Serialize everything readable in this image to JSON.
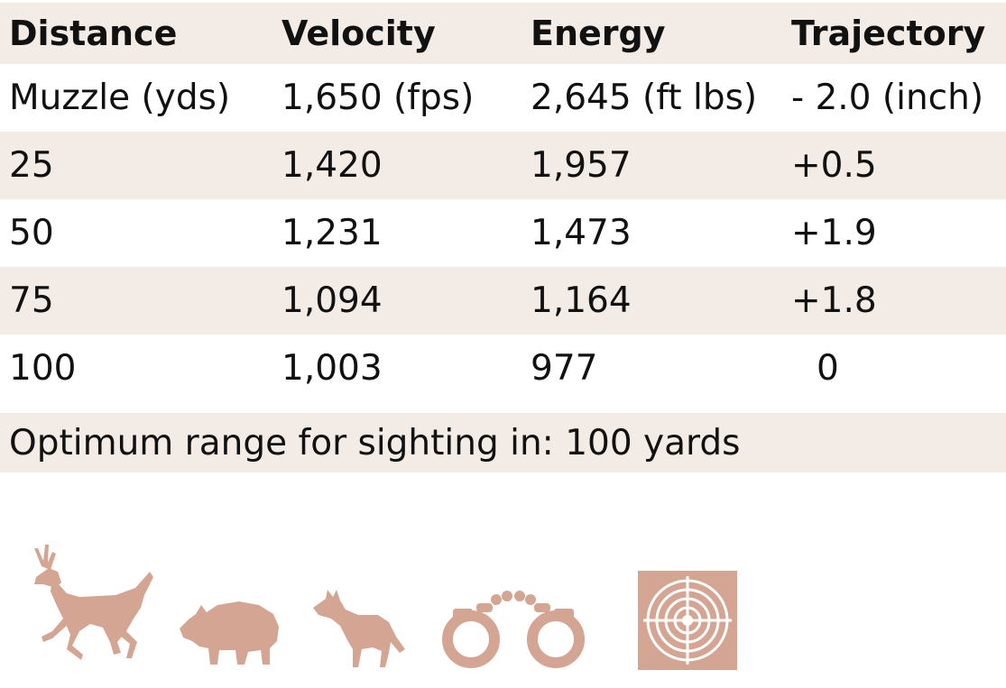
{
  "table": {
    "headers": [
      "Distance",
      "Velocity",
      "Energy",
      "Trajectory"
    ],
    "rows": [
      [
        "Muzzle (yds)",
        "1,650 (fps)",
        "2,645 (ft lbs)",
        "- 2.0 (inch)"
      ],
      [
        "25",
        "1,420",
        "1,957",
        "+0.5"
      ],
      [
        "50",
        "1,231",
        "1,473",
        "+1.9"
      ],
      [
        "75",
        "1,094",
        "1,164",
        "+1.8"
      ],
      [
        "100",
        "1,003",
        "977",
        "0"
      ]
    ]
  },
  "footer": {
    "note": "Optimum range for sighting in: 100 yards"
  },
  "icons": {
    "color": "#d4a593",
    "items": [
      "deer-icon",
      "boar-icon",
      "coyote-icon",
      "handcuffs-icon",
      "target-icon"
    ]
  }
}
